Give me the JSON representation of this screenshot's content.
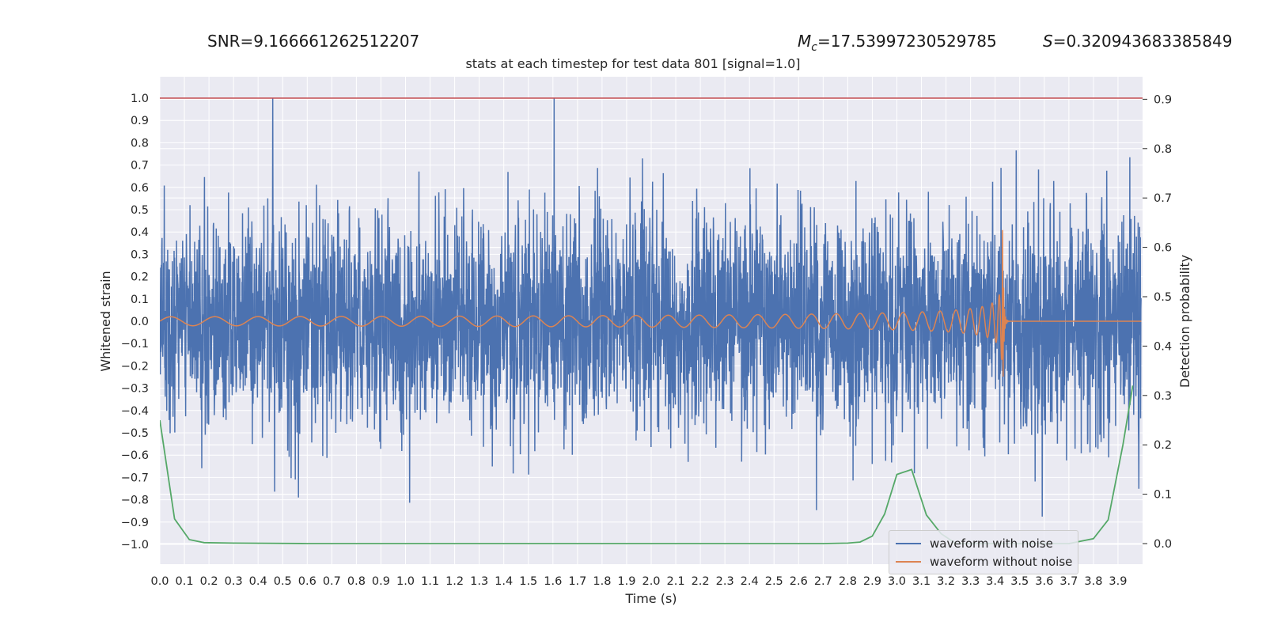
{
  "stats": {
    "snr": "SNR=9.166661262512207",
    "mc_symbol": "M",
    "mc_sub": "c",
    "mc_value": "=17.53997230529785",
    "s_symbol": "S",
    "s_value": "=0.320943683385849"
  },
  "chart_data": {
    "type": "line",
    "title": "stats at each timestep for test data 801 [signal=1.0]",
    "xlabel": "Time (s)",
    "ylabel": "Whitened strain",
    "y2label": "Detection probability",
    "xlim": [
      0.0,
      4.0
    ],
    "ylim": [
      -1.1,
      1.1
    ],
    "y2lim": [
      -0.04,
      0.94
    ],
    "xticks": [
      "0.0",
      "0.1",
      "0.2",
      "0.3",
      "0.4",
      "0.5",
      "0.6",
      "0.7",
      "0.8",
      "0.9",
      "1.0",
      "1.1",
      "1.2",
      "1.3",
      "1.4",
      "1.5",
      "1.6",
      "1.7",
      "1.8",
      "1.9",
      "2.0",
      "2.1",
      "2.2",
      "2.3",
      "2.4",
      "2.5",
      "2.6",
      "2.7",
      "2.8",
      "2.9",
      "3.0",
      "3.1",
      "3.2",
      "3.3",
      "3.4",
      "3.5",
      "3.6",
      "3.7",
      "3.8",
      "3.9"
    ],
    "yticks": [
      "1.0",
      "0.9",
      "0.8",
      "0.7",
      "0.6",
      "0.5",
      "0.4",
      "0.3",
      "0.2",
      "0.1",
      "0.0",
      "−0.1",
      "−0.2",
      "−0.3",
      "−0.4",
      "−0.5",
      "−0.6",
      "−0.7",
      "−0.8",
      "−0.9",
      "−1.0"
    ],
    "y2ticks": [
      "0.9",
      "0.8",
      "0.7",
      "0.6",
      "0.5",
      "0.4",
      "0.3",
      "0.2",
      "0.1",
      "0.0"
    ],
    "threshold": 1.0,
    "colors": {
      "noise": "#4c72b0",
      "signal": "#dd8452",
      "probability": "#55a868",
      "threshold": "#c44e52",
      "background": "#eaeaf2",
      "grid": "#ffffff"
    },
    "legend": [
      "waveform with noise",
      "waveform without noise"
    ],
    "legend_position": "lower right",
    "series": [
      {
        "name": "waveform with noise",
        "description_only": false,
        "envelope_mean_abs": 0.35,
        "peak_min": -1.0,
        "peak_max": 1.0
      },
      {
        "name": "waveform without noise",
        "merger_time": 3.43,
        "merger_peak": 0.48,
        "merger_trough": -0.43,
        "early_amplitude": 0.02
      },
      {
        "name": "detection probability",
        "x": [
          0.0,
          0.06,
          0.12,
          0.18,
          0.3,
          0.6,
          1.0,
          1.5,
          2.0,
          2.5,
          2.7,
          2.8,
          2.85,
          2.9,
          2.95,
          3.0,
          3.06,
          3.12,
          3.18,
          3.24,
          3.3,
          3.4,
          3.5,
          3.6,
          3.7,
          3.8,
          3.86,
          3.92,
          3.96
        ],
        "y": [
          0.25,
          0.05,
          0.008,
          0.002,
          0.001,
          0.0,
          0.0,
          0.0,
          0.0,
          0.0,
          0.0,
          0.001,
          0.003,
          0.015,
          0.06,
          0.14,
          0.15,
          0.058,
          0.02,
          0.0,
          0.0,
          0.0,
          0.0,
          0.0,
          0.0,
          0.01,
          0.048,
          0.2,
          0.32
        ]
      }
    ]
  }
}
